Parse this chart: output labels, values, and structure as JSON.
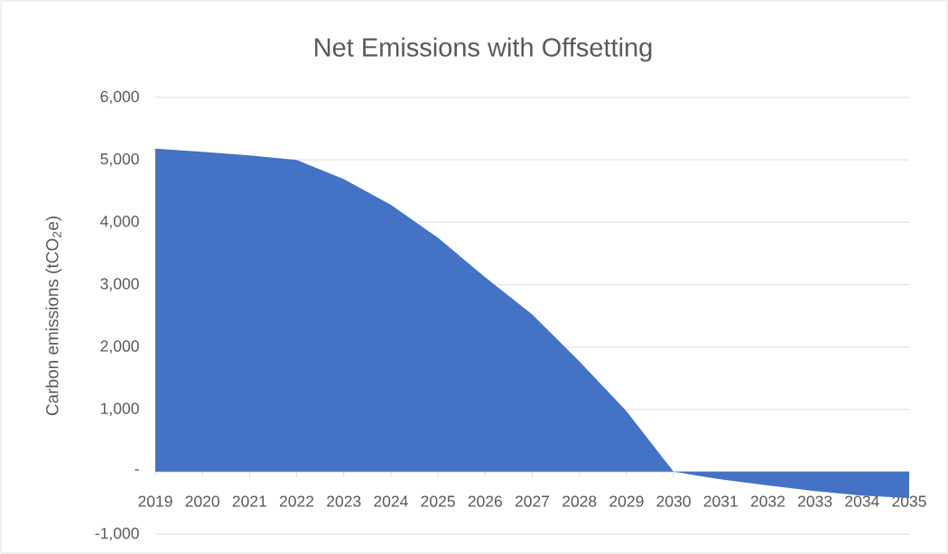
{
  "chart_data": {
    "type": "area",
    "title": "Net Emissions with Offsetting",
    "ylabel": "Carbon emissions (tCO$_{2}$e)",
    "categories": [
      "2019",
      "2020",
      "2021",
      "2022",
      "2023",
      "2024",
      "2025",
      "2026",
      "2027",
      "2028",
      "2029",
      "2030",
      "2031",
      "2032",
      "2033",
      "2034",
      "2035"
    ],
    "values": [
      5180,
      5130,
      5070,
      5000,
      4690,
      4280,
      3750,
      3120,
      2520,
      1770,
      970,
      0,
      -120,
      -220,
      -310,
      -380,
      -420
    ],
    "color": "#4472c4",
    "ylim": [
      -1000,
      6000
    ],
    "yticks": [
      {
        "value": -1000,
        "label": "-1,000"
      },
      {
        "value": 0,
        "label": "-"
      },
      {
        "value": 1000,
        "label": "1,000"
      },
      {
        "value": 2000,
        "label": "2,000"
      },
      {
        "value": 3000,
        "label": "3,000"
      },
      {
        "value": 4000,
        "label": "4,000"
      },
      {
        "value": 5000,
        "label": "5,000"
      },
      {
        "value": 6000,
        "label": "6,000"
      }
    ],
    "grid": "y"
  }
}
